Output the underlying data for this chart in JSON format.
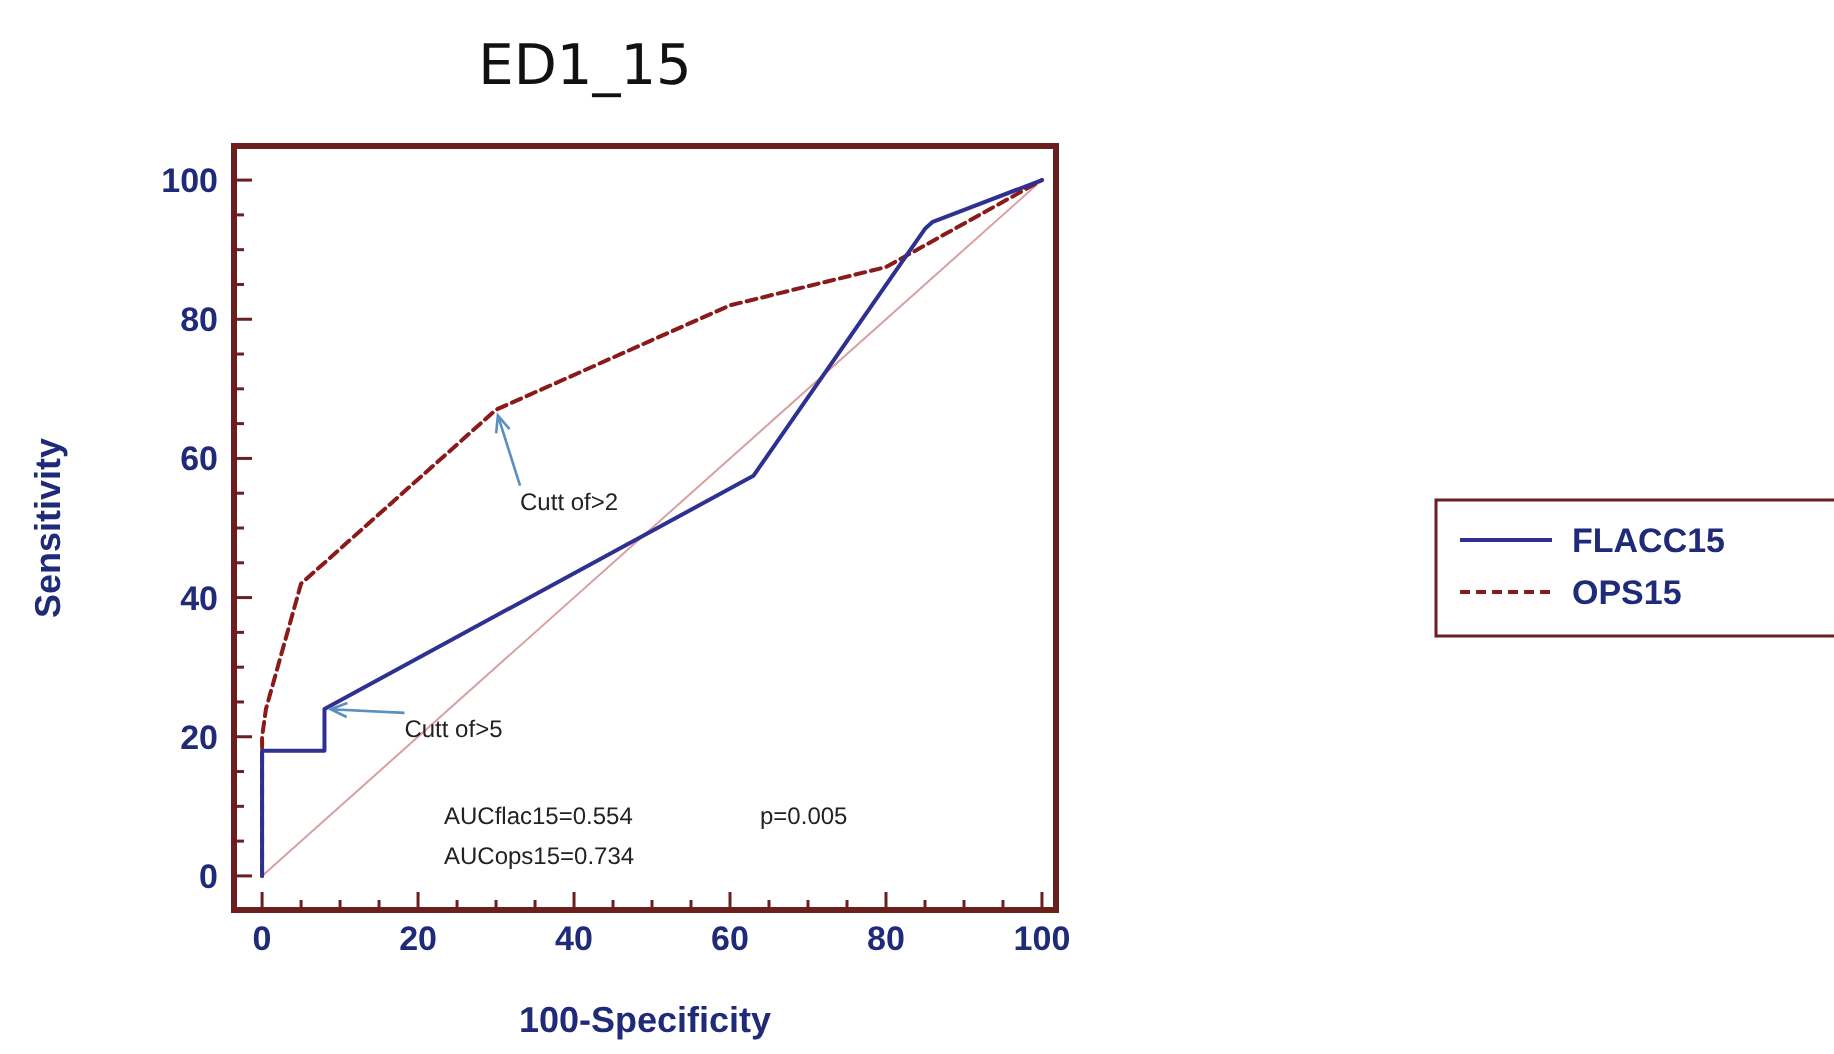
{
  "chart_data": {
    "type": "line",
    "title": "ED1_15",
    "xlabel": "100-Specificity",
    "ylabel": "Sensitivity",
    "xlim": [
      -3.6,
      101.8
    ],
    "ylim": [
      -4.9,
      104.9
    ],
    "xticks": [
      0,
      {
        "value": 5,
        "label": null
      },
      {
        "value": 10,
        "label": null
      },
      {
        "value": 15,
        "label": null
      },
      20,
      {
        "value": 25,
        "label": null
      },
      {
        "value": 30,
        "label": null
      },
      {
        "value": 35,
        "label": null
      },
      40,
      {
        "value": 45,
        "label": null
      },
      {
        "value": 50,
        "label": null
      },
      {
        "value": 55,
        "label": null
      },
      60,
      {
        "value": 65,
        "label": null
      },
      {
        "value": 70,
        "label": null
      },
      {
        "value": 75,
        "label": null
      },
      80,
      {
        "value": 85,
        "label": null
      },
      {
        "value": 90,
        "label": null
      },
      {
        "value": 95,
        "label": null
      },
      100
    ],
    "yticks": [
      0,
      {
        "value": 5,
        "label": null
      },
      {
        "value": 10,
        "label": null
      },
      {
        "value": 15,
        "label": null
      },
      20,
      {
        "value": 25,
        "label": null
      },
      {
        "value": 30,
        "label": null
      },
      {
        "value": 35,
        "label": null
      },
      40,
      {
        "value": 45,
        "label": null
      },
      {
        "value": 50,
        "label": null
      },
      {
        "value": 55,
        "label": null
      },
      60,
      {
        "value": 65,
        "label": null
      },
      {
        "value": 70,
        "label": null
      },
      {
        "value": 75,
        "label": null
      },
      80,
      {
        "value": 85,
        "label": null
      },
      {
        "value": 90,
        "label": null
      },
      {
        "value": 95,
        "label": null
      },
      100
    ],
    "grid": false,
    "legend": "right",
    "marker": "none",
    "series": [
      {
        "name": "FLACC15",
        "color": "#2e3192",
        "line_style": "solid",
        "x": [
          0,
          0,
          8,
          8,
          63,
          85,
          86,
          100
        ],
        "values": [
          0,
          18,
          18,
          24,
          57.5,
          93,
          94,
          100
        ]
      },
      {
        "name": "OPS15",
        "color": "#8b1a1a",
        "line_style": "dashed",
        "x": [
          0,
          0,
          0.5,
          5,
          30,
          60,
          80,
          100
        ],
        "values": [
          0,
          20,
          24,
          42,
          67,
          82,
          87.5,
          100
        ]
      },
      {
        "color": "#d9a0a0",
        "line_style": "solid",
        "x": [
          0,
          100
        ],
        "values": [
          0,
          100
        ]
      }
    ],
    "annotations": [
      {
        "text": "Cutt of>2",
        "x": 30,
        "y": 67
      },
      {
        "text": "Cutt of>5",
        "x": 8,
        "y": 24
      },
      "AUCflac15=0.554",
      "p=0.005",
      "AUCops15=0.734"
    ]
  }
}
